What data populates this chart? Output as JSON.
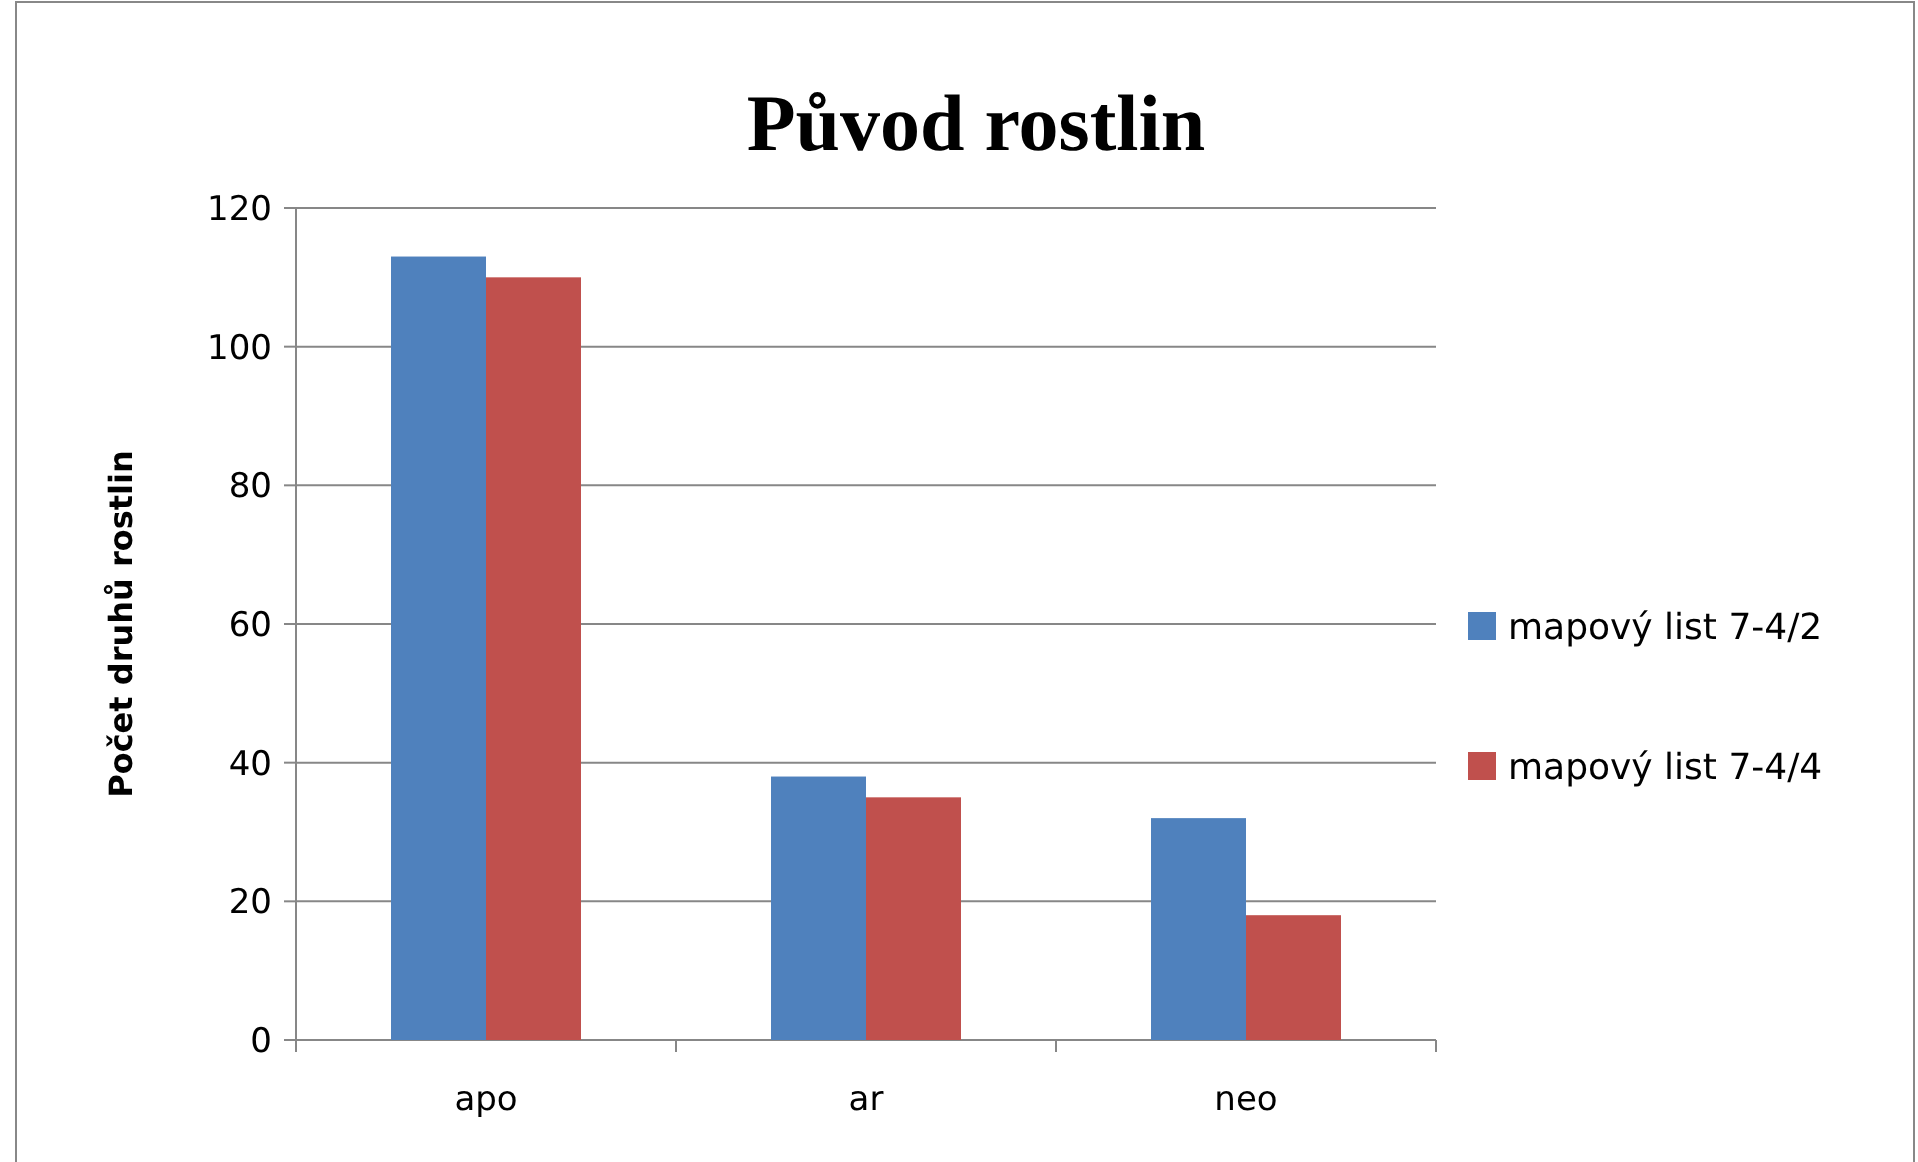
{
  "chart_data": {
    "type": "bar",
    "title": "Původ rostlin",
    "ylabel": "Počet druhů rostlin",
    "categories": [
      "apo",
      "ar",
      "neo"
    ],
    "series": [
      {
        "name": "mapový list 7-4/2",
        "color": "#4f81bd",
        "values": [
          113,
          38,
          32
        ]
      },
      {
        "name": "mapový list 7-4/4",
        "color": "#c0504d",
        "values": [
          110,
          35,
          18
        ]
      }
    ],
    "ylim": [
      0,
      120
    ],
    "yticks": [
      0,
      20,
      40,
      60,
      80,
      100,
      120
    ],
    "grid": "y",
    "legend": "right"
  }
}
